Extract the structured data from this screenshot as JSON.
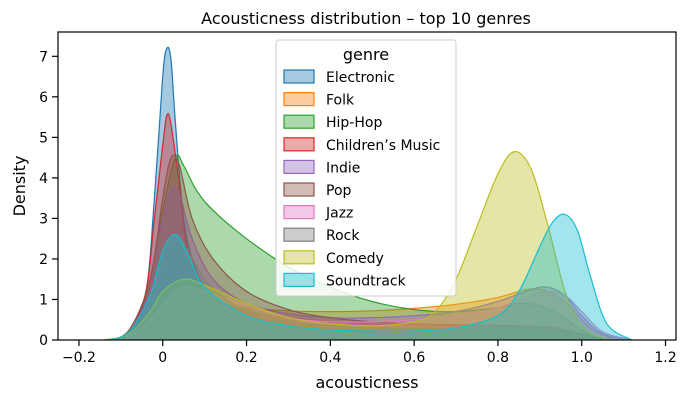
{
  "chart_data": {
    "type": "area",
    "title": "Acousticness distribution – top 10 genres",
    "xlabel": "acousticness",
    "ylabel": "Density",
    "xlim": [
      -0.25,
      1.225
    ],
    "ylim": [
      0,
      7.6
    ],
    "xticks": [
      -0.2,
      0.0,
      0.2,
      0.4,
      0.6,
      0.8,
      1.0,
      1.2
    ],
    "xtick_labels": [
      "−0.2",
      "0",
      "0.2",
      "0.4",
      "0.6",
      "0.8",
      "1.0",
      "1.2"
    ],
    "yticks": [
      0,
      1,
      2,
      3,
      4,
      5,
      6,
      7
    ],
    "ytick_labels": [
      "0",
      "1",
      "2",
      "3",
      "4",
      "5",
      "6",
      "7"
    ],
    "grid": false,
    "legend": {
      "title": "genre",
      "placement": "top-center"
    },
    "series": [
      {
        "name": "Electronic",
        "color": "#1f77b4",
        "x": [
          -0.13,
          -0.08,
          -0.04,
          -0.02,
          0.0,
          0.01,
          0.02,
          0.03,
          0.05,
          0.08,
          0.12,
          0.2,
          0.3,
          0.4,
          0.5,
          0.6,
          0.7,
          0.8,
          0.9,
          0.95,
          1.0,
          1.05,
          1.1
        ],
        "y": [
          0,
          0.15,
          1.2,
          3.5,
          6.5,
          7.2,
          6.9,
          5.4,
          3.0,
          1.7,
          1.1,
          0.65,
          0.42,
          0.3,
          0.22,
          0.18,
          0.15,
          0.14,
          0.12,
          0.1,
          0.06,
          0.02,
          0
        ]
      },
      {
        "name": "Folk",
        "color": "#ff7f0e",
        "x": [
          -0.14,
          -0.08,
          -0.04,
          0.0,
          0.05,
          0.1,
          0.2,
          0.3,
          0.4,
          0.5,
          0.6,
          0.7,
          0.8,
          0.87,
          0.92,
          0.97,
          1.02,
          1.08
        ],
        "y": [
          0,
          0.1,
          0.4,
          0.8,
          1.05,
          0.95,
          0.8,
          0.72,
          0.7,
          0.72,
          0.78,
          0.88,
          1.05,
          1.25,
          1.2,
          0.85,
          0.3,
          0
        ]
      },
      {
        "name": "Hip-Hop",
        "color": "#2ca02c",
        "x": [
          -0.12,
          -0.07,
          -0.03,
          0.0,
          0.03,
          0.05,
          0.08,
          0.12,
          0.2,
          0.3,
          0.4,
          0.5,
          0.6,
          0.7,
          0.8,
          0.85,
          0.9,
          0.95,
          1.0,
          1.05,
          1.1
        ],
        "y": [
          0,
          0.2,
          1.5,
          3.2,
          4.5,
          4.3,
          3.7,
          3.2,
          2.5,
          1.8,
          1.3,
          0.95,
          0.75,
          0.7,
          0.8,
          0.9,
          0.85,
          0.6,
          0.25,
          0.05,
          0
        ]
      },
      {
        "name": "Children’s Music",
        "color": "#d62728",
        "x": [
          -0.13,
          -0.08,
          -0.04,
          -0.02,
          0.0,
          0.01,
          0.02,
          0.04,
          0.06,
          0.1,
          0.2,
          0.3,
          0.4,
          0.5,
          0.6,
          0.7,
          0.8,
          0.9,
          0.95,
          1.0,
          1.05,
          1.1
        ],
        "y": [
          0,
          0.2,
          1.2,
          3.0,
          4.8,
          5.55,
          5.3,
          3.8,
          2.2,
          1.2,
          0.7,
          0.55,
          0.45,
          0.4,
          0.38,
          0.35,
          0.33,
          0.3,
          0.25,
          0.15,
          0.04,
          0
        ]
      },
      {
        "name": "Indie",
        "color": "#9467bd",
        "x": [
          -0.13,
          -0.08,
          -0.03,
          0.0,
          0.02,
          0.04,
          0.07,
          0.12,
          0.2,
          0.3,
          0.4,
          0.5,
          0.6,
          0.7,
          0.8,
          0.88,
          0.92,
          0.96,
          1.0,
          1.05,
          1.12
        ],
        "y": [
          0,
          0.2,
          1.3,
          3.0,
          3.7,
          3.6,
          2.5,
          1.5,
          0.9,
          0.65,
          0.55,
          0.55,
          0.6,
          0.7,
          0.95,
          1.25,
          1.3,
          1.1,
          0.6,
          0.15,
          0
        ]
      },
      {
        "name": "Pop",
        "color": "#8c564b",
        "x": [
          -0.13,
          -0.08,
          -0.03,
          0.0,
          0.02,
          0.04,
          0.07,
          0.12,
          0.2,
          0.3,
          0.4,
          0.5,
          0.6,
          0.7,
          0.8,
          0.9,
          0.95,
          1.0,
          1.05,
          1.1
        ],
        "y": [
          0,
          0.25,
          1.5,
          3.5,
          4.5,
          4.3,
          3.0,
          2.0,
          1.2,
          0.75,
          0.55,
          0.45,
          0.4,
          0.38,
          0.36,
          0.33,
          0.28,
          0.15,
          0.04,
          0
        ]
      },
      {
        "name": "Jazz",
        "color": "#e377c2",
        "x": [
          -0.14,
          -0.08,
          -0.03,
          0.02,
          0.05,
          0.1,
          0.2,
          0.3,
          0.4,
          0.5,
          0.6,
          0.7,
          0.8,
          0.88,
          0.92,
          0.96,
          1.0,
          1.05,
          1.12
        ],
        "y": [
          0,
          0.1,
          0.5,
          1.1,
          1.3,
          1.2,
          0.85,
          0.55,
          0.45,
          0.45,
          0.5,
          0.6,
          0.8,
          1.1,
          1.2,
          1.1,
          0.7,
          0.2,
          0
        ]
      },
      {
        "name": "Rock",
        "color": "#7f7f7f",
        "x": [
          -0.13,
          -0.08,
          -0.03,
          0.0,
          0.03,
          0.06,
          0.1,
          0.15,
          0.2,
          0.3,
          0.4,
          0.5,
          0.6,
          0.7,
          0.8,
          0.9,
          0.95,
          1.0,
          1.05,
          1.1
        ],
        "y": [
          0,
          0.15,
          0.9,
          2.0,
          2.6,
          2.2,
          1.5,
          1.0,
          0.75,
          0.45,
          0.35,
          0.3,
          0.28,
          0.27,
          0.26,
          0.24,
          0.2,
          0.12,
          0.03,
          0
        ]
      },
      {
        "name": "Comedy",
        "color": "#bcbd22",
        "x": [
          -0.14,
          -0.08,
          -0.03,
          0.0,
          0.05,
          0.1,
          0.2,
          0.3,
          0.4,
          0.5,
          0.6,
          0.65,
          0.7,
          0.75,
          0.8,
          0.84,
          0.88,
          0.92,
          0.96,
          1.0,
          1.05,
          1.1
        ],
        "y": [
          0,
          0.15,
          0.7,
          1.2,
          1.5,
          1.35,
          0.9,
          0.55,
          0.4,
          0.35,
          0.45,
          0.7,
          1.5,
          2.8,
          4.1,
          4.65,
          4.2,
          2.8,
          1.2,
          0.35,
          0.05,
          0
        ]
      },
      {
        "name": "Soundtrack",
        "color": "#17becf",
        "x": [
          -0.13,
          -0.08,
          -0.03,
          0.0,
          0.03,
          0.06,
          0.1,
          0.2,
          0.3,
          0.4,
          0.5,
          0.6,
          0.7,
          0.8,
          0.85,
          0.9,
          0.93,
          0.96,
          0.99,
          1.02,
          1.06,
          1.12
        ],
        "y": [
          0,
          0.2,
          1.1,
          2.2,
          2.6,
          2.1,
          1.3,
          0.6,
          0.35,
          0.25,
          0.22,
          0.22,
          0.3,
          0.6,
          1.2,
          2.3,
          2.9,
          3.1,
          2.7,
          1.6,
          0.4,
          0
        ]
      }
    ]
  }
}
